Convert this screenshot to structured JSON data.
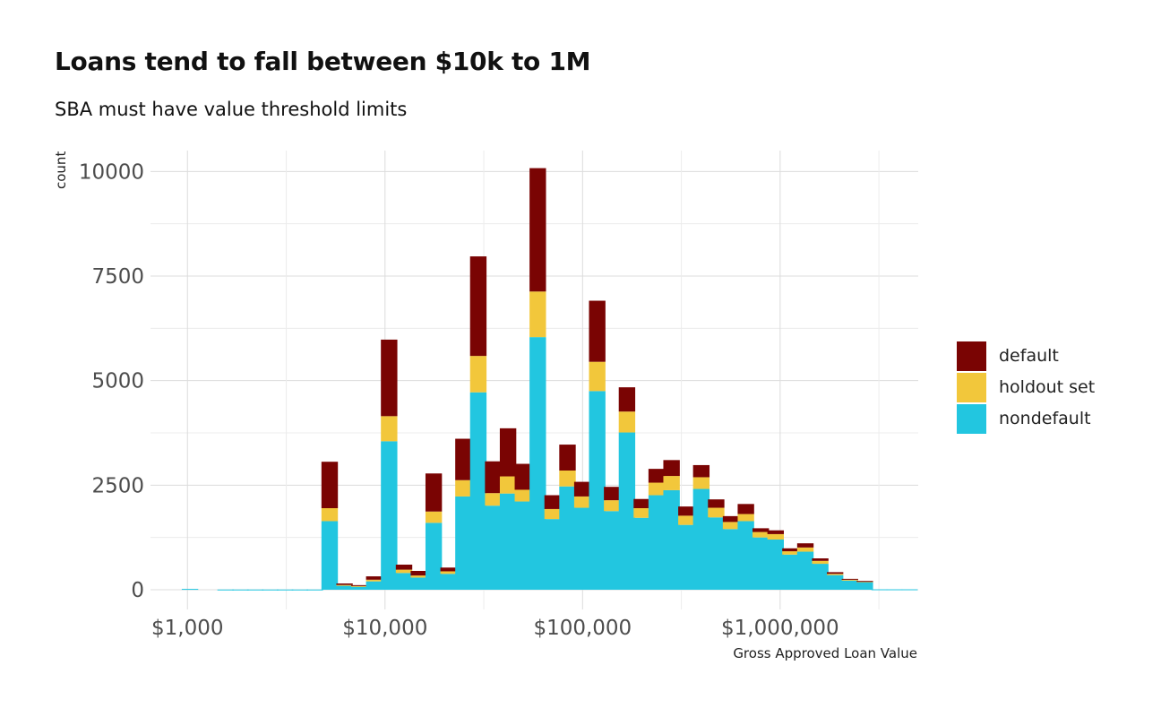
{
  "title": "Loans tend to fall between $10k to 1M",
  "subtitle": "SBA must have value threshold limits",
  "chart_data": {
    "type": "bar",
    "stacked": true,
    "x_scale": "log10",
    "xlabel": "Gross Approved Loan Value",
    "ylabel": "count",
    "xlim": [
      650,
      5000000
    ],
    "ylim": [
      0,
      10500
    ],
    "x_ticks": [
      1000,
      10000,
      100000,
      1000000
    ],
    "x_tick_labels": [
      "$1,000",
      "$10,000",
      "$100,000",
      "$1,000,000"
    ],
    "y_ticks": [
      0,
      2500,
      5000,
      7500,
      10000
    ],
    "y_tick_labels": [
      "0",
      "2500",
      "5000",
      "7500",
      "10000"
    ],
    "grid": true,
    "legend_position": "right",
    "bin_width_log10": 0.0833,
    "bin_centers": [
      1030,
      1560,
      1855,
      2206,
      2623,
      3120,
      3710,
      4412,
      5246,
      6238,
      7419,
      8822,
      10490,
      12480,
      14840,
      17640,
      20980,
      24950,
      29660,
      35280,
      41950,
      49890,
      59320,
      70540,
      83890,
      99760,
      118600,
      141100,
      167800,
      199500,
      237200,
      282100,
      335500,
      398900,
      474400,
      564200,
      670900,
      797800,
      948700,
      1128000,
      1342000,
      1596000,
      1897000,
      2256000,
      2683000,
      3191000,
      3794000,
      4512000
    ],
    "series": [
      {
        "name": "nondefault",
        "color": "#22C6E0",
        "values": [
          20,
          5,
          5,
          5,
          5,
          5,
          5,
          5,
          1640,
          100,
          80,
          200,
          3550,
          400,
          290,
          1600,
          380,
          2230,
          4720,
          2010,
          2300,
          2110,
          6040,
          1690,
          2470,
          1960,
          4750,
          1880,
          3760,
          1720,
          2260,
          2380,
          1550,
          2410,
          1730,
          1450,
          1640,
          1250,
          1200,
          840,
          910,
          620,
          350,
          220,
          190,
          10,
          10,
          10
        ]
      },
      {
        "name": "holdout set",
        "color": "#F2C73B",
        "values": [
          0,
          0,
          0,
          0,
          0,
          0,
          0,
          0,
          310,
          15,
          10,
          40,
          600,
          80,
          50,
          270,
          60,
          390,
          870,
          300,
          410,
          280,
          1090,
          240,
          380,
          270,
          700,
          260,
          500,
          230,
          300,
          340,
          220,
          280,
          230,
          170,
          170,
          130,
          130,
          80,
          100,
          70,
          30,
          20,
          10,
          0,
          0,
          0
        ]
      },
      {
        "name": "default",
        "color": "#7A0403",
        "values": [
          0,
          0,
          0,
          0,
          0,
          0,
          0,
          0,
          1110,
          35,
          20,
          80,
          1830,
          120,
          110,
          910,
          90,
          990,
          2380,
          760,
          1150,
          620,
          2950,
          330,
          620,
          350,
          1460,
          320,
          580,
          220,
          330,
          380,
          220,
          290,
          200,
          140,
          240,
          90,
          90,
          70,
          100,
          60,
          40,
          20,
          10,
          0,
          0,
          0
        ]
      }
    ],
    "legend_order": [
      "default",
      "holdout set",
      "nondefault"
    ]
  }
}
